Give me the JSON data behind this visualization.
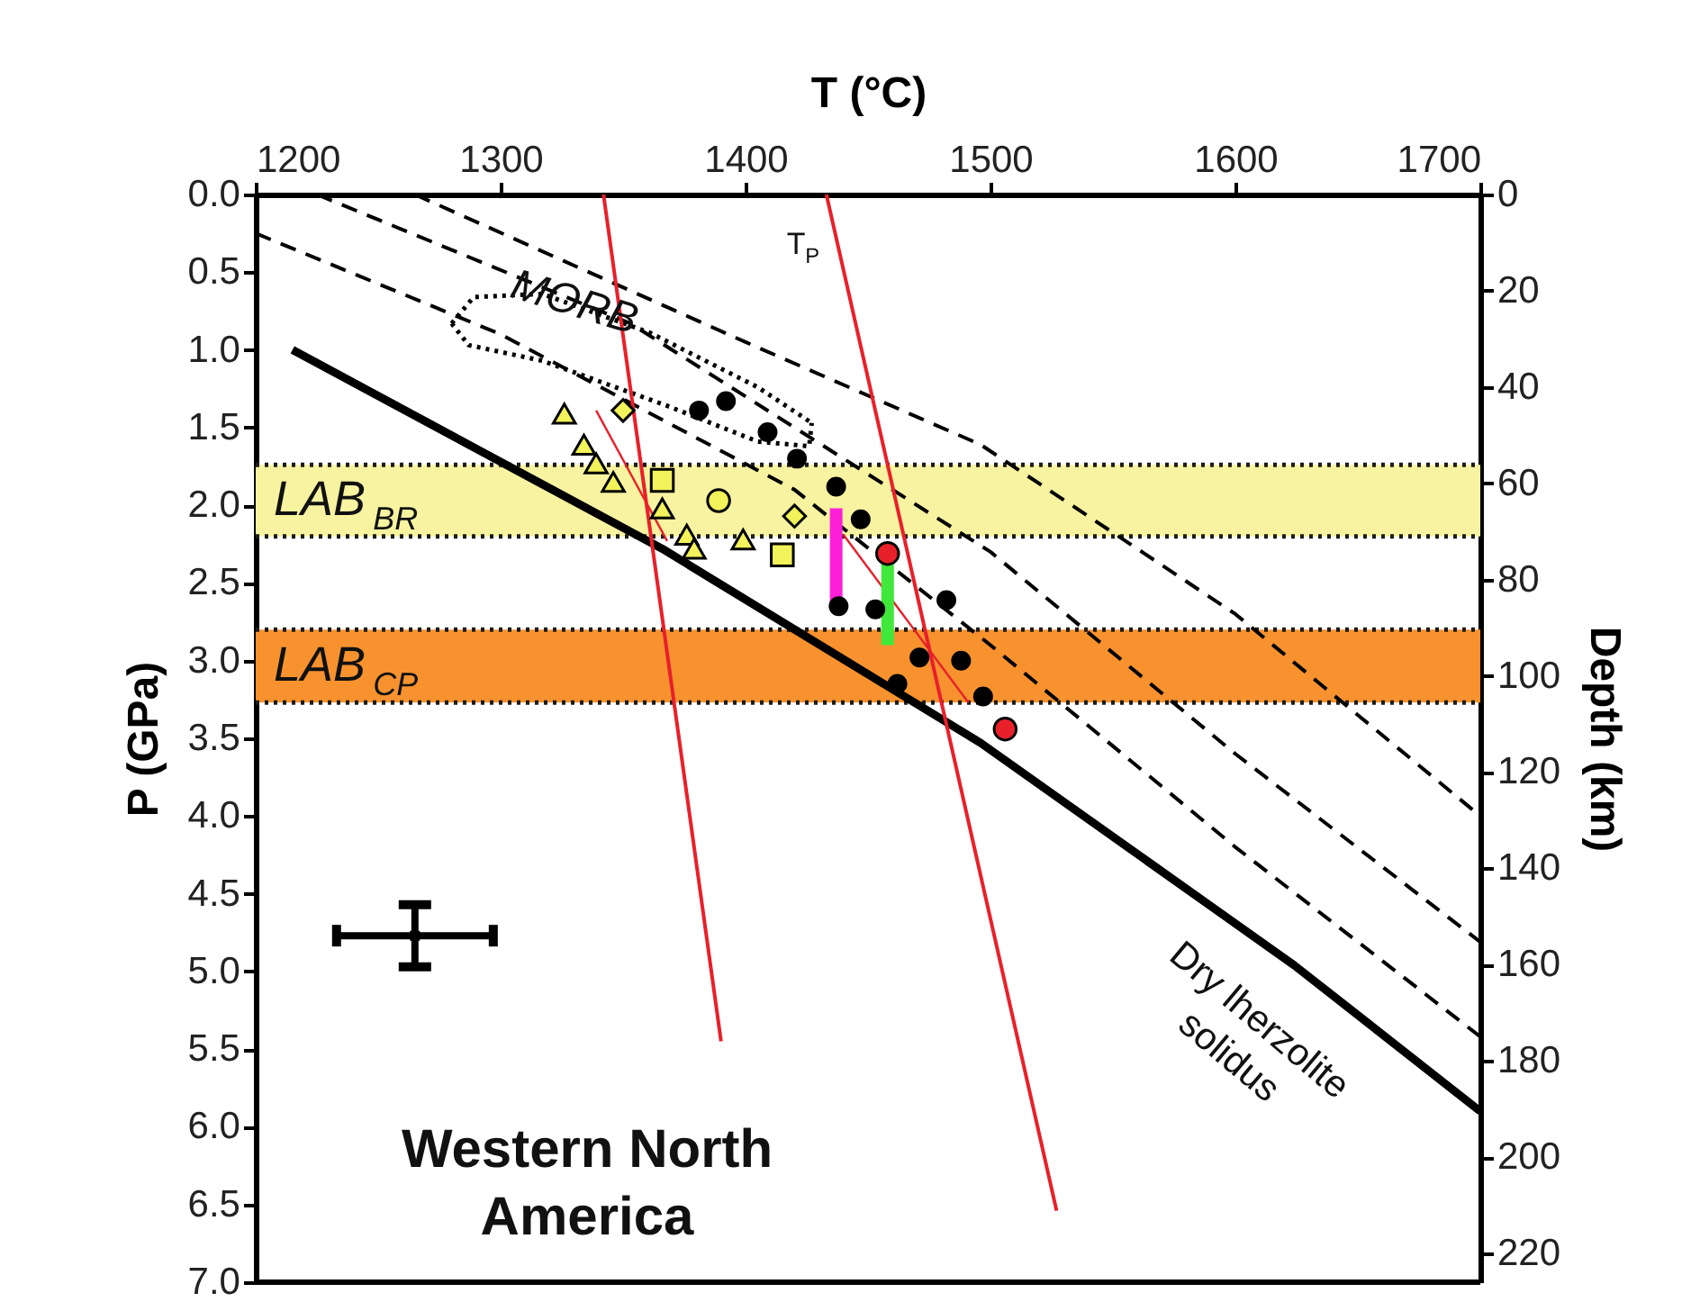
{
  "chart_data": {
    "type": "line",
    "xlabel": "T (°C)",
    "ylabel": "P (GPa)",
    "y2label": "Depth (km)",
    "xlim": [
      1200,
      1700
    ],
    "xticks": [
      1200,
      1300,
      1400,
      1500,
      1600,
      1700
    ],
    "ylim": [
      7.0,
      0.0
    ],
    "yticks": [
      {
        "value": 0,
        "label": "0.0"
      },
      0.5,
      {
        "value": 1,
        "label": "1.0"
      },
      1.5,
      {
        "value": 2,
        "label": "2.0"
      },
      2.5,
      {
        "value": 3,
        "label": "3.0"
      },
      3.5,
      {
        "value": 4,
        "label": "4.0"
      },
      4.5,
      {
        "value": 5,
        "label": "5.0"
      },
      5.5,
      {
        "value": 6,
        "label": "6.0"
      },
      6.5,
      {
        "value": 7,
        "label": "7.0"
      }
    ],
    "y2lim": [
      226,
      0
    ],
    "y2ticks": [
      0,
      20,
      40,
      60,
      80,
      100,
      120,
      140,
      160,
      180,
      200,
      220
    ],
    "grid": false,
    "bands": [
      {
        "axis": "y",
        "from": 1.74,
        "to": 2.2,
        "label": "LAB$_{BR}$",
        "color": "#f7f3a0"
      },
      {
        "axis": "y",
        "from": 2.8,
        "to": 3.27,
        "label": "LAB$_{CP}$",
        "color": "#f7922f"
      }
    ],
    "series": [
      {
        "color": "#000000",
        "line_style": "solid",
        "x": [
          1215,
          1366,
          1496,
          1624,
          1700
        ],
        "values": [
          1.0,
          2.28,
          3.53,
          4.96,
          5.9
        ]
      },
      {
        "color": "#000000",
        "line_style": "dashed",
        "x": [
          1265,
          1400,
          1496,
          1600,
          1700
        ],
        "values": [
          0.0,
          0.95,
          1.61,
          2.7,
          4.0
        ]
      },
      {
        "color": "#000000",
        "line_style": "dashed",
        "x": [
          1225,
          1353,
          1500,
          1600,
          1700
        ],
        "values": [
          0.0,
          0.83,
          2.3,
          3.6,
          4.81
        ]
      },
      {
        "color": "#000000",
        "line_style": "dashed",
        "x": [
          1200,
          1300,
          1420,
          1500,
          1600,
          1700
        ],
        "values": [
          0.25,
          0.9,
          1.9,
          2.9,
          4.2,
          5.42
        ]
      },
      {
        "color": "#000000",
        "line_style": "dotted",
        "x": [
          1280,
          1289,
          1317,
          1361,
          1405,
          1427
        ],
        "values": [
          0.83,
          0.66,
          0.64,
          0.89,
          1.24,
          1.47
        ]
      },
      {
        "color": "#000000",
        "line_style": "dotted",
        "x": [
          1280,
          1287,
          1317,
          1368,
          1405,
          1426,
          1427
        ],
        "values": [
          0.83,
          0.97,
          1.07,
          1.36,
          1.59,
          1.62,
          1.47
        ]
      },
      {
        "color": "#e8202a",
        "line_style": "solid",
        "x": [
          1342,
          1390
        ],
        "values": [
          0.0,
          5.45
        ]
      },
      {
        "color": "#e8202a",
        "line_style": "solid",
        "x": [
          1433,
          1527
        ],
        "values": [
          0.0,
          6.54
        ]
      },
      {
        "color": "#e8202a",
        "line_style": "solid",
        "x": [
          1339,
          1368
        ],
        "values": [
          1.39,
          2.23
        ]
      },
      {
        "color": "#e8202a",
        "line_style": "solid",
        "x": [
          1440,
          1491
        ],
        "values": [
          2.19,
          3.27
        ]
      },
      {
        "color": "#ff1fd8",
        "line_style": "solid",
        "x": [
          1437,
          1437
        ],
        "values": [
          2.02,
          2.63
        ]
      },
      {
        "color": "#3fe83a",
        "line_style": "solid",
        "x": [
          1458,
          1458
        ],
        "values": [
          2.28,
          2.9
        ]
      },
      {
        "type": "scatter",
        "color": "#000000",
        "marker": "circle",
        "x": [
          1381,
          1392,
          1409,
          1421,
          1437,
          1447,
          1453,
          1438,
          1482,
          1471,
          1488,
          1462,
          1497
        ],
        "values": [
          1.39,
          1.33,
          1.53,
          1.7,
          1.88,
          2.09,
          2.67,
          2.65,
          2.61,
          2.98,
          3.0,
          3.15,
          3.23
        ]
      },
      {
        "type": "scatter",
        "color": "#f2f25a",
        "marker": "triangle",
        "x": [
          1326,
          1334,
          1339,
          1346,
          1366,
          1376,
          1379,
          1399
        ],
        "values": [
          1.41,
          1.61,
          1.73,
          1.85,
          2.02,
          2.19,
          2.28,
          2.22
        ]
      },
      {
        "type": "scatter",
        "color": "#f2f25a",
        "marker": "diamond",
        "x": [
          1350,
          1420
        ],
        "values": [
          1.39,
          2.07
        ]
      },
      {
        "type": "scatter",
        "color": "#f2f25a",
        "marker": "circle",
        "x": [
          1389
        ],
        "values": [
          1.97
        ]
      },
      {
        "type": "scatter",
        "color": "#f2f25a",
        "marker": "square",
        "x": [
          1415,
          1366
        ],
        "values": [
          2.32,
          1.84
        ]
      },
      {
        "type": "scatter",
        "color": "#e8202a",
        "marker": "circle",
        "x": [
          1506,
          1458
        ],
        "values": [
          3.44,
          2.31
        ]
      },
      {
        "type": "scatter",
        "color": "#000000",
        "marker": "square",
        "x": [
          1265
        ],
        "values": [
          4.77
        ],
        "errors": [
          0.2
        ],
        "xerrors": [
          32
        ]
      }
    ],
    "annotations": [
      {
        "text": "MORB",
        "x": 1330,
        "y": 0.7
      },
      "T$_{P}$",
      "Dry lherzolite\nsolidus",
      "Western North\nAmerica"
    ]
  }
}
